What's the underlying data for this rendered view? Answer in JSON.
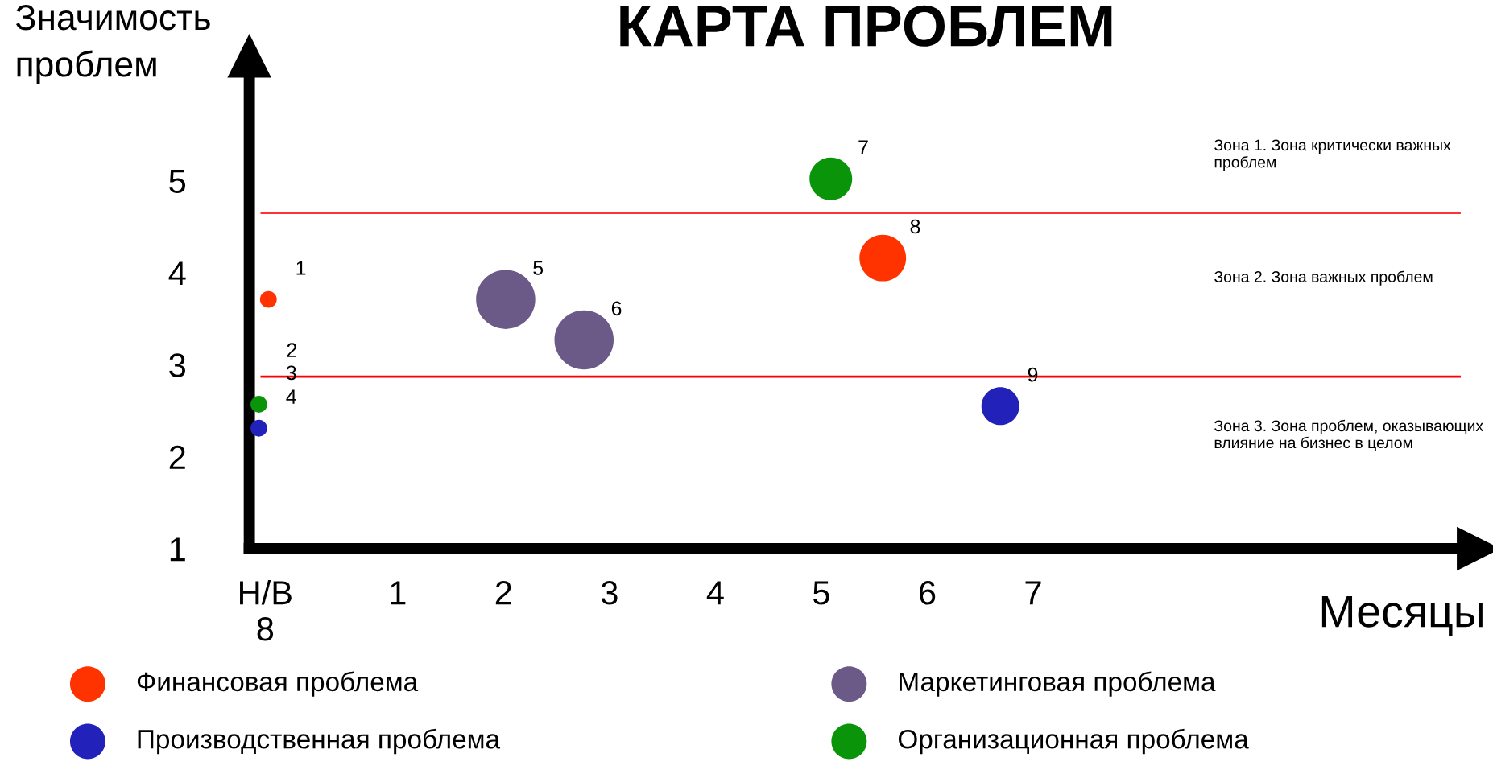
{
  "chart_data": {
    "type": "bubble",
    "title": "КАРТА ПРОБЛЕМ",
    "xlabel": "Месяцы",
    "ylabel": "Значимость\nпроблем",
    "xlim": [
      -0.4,
      11.2
    ],
    "ylim": [
      1,
      6.35
    ],
    "xticks": [
      {
        "value": -0.25,
        "label": "Н/В\n8"
      },
      1,
      2,
      3,
      4,
      5,
      6,
      7
    ],
    "yticks": [
      1,
      2,
      3,
      4,
      5
    ],
    "grid": false,
    "legend": "bottom",
    "series": [
      {
        "name": "Финансовая проблема",
        "color": "#ff3300",
        "x": [
          -0.22,
          5.58
        ],
        "values": [
          3.71,
          4.16
        ],
        "sizes": [
          0.08,
          0.62
        ]
      },
      {
        "name": "Маркетинговая проблема",
        "color": "#6b5a87",
        "x": [
          2.02,
          2.76
        ],
        "values": [
          3.71,
          3.27
        ],
        "sizes": [
          1,
          1
        ]
      },
      {
        "name": "Производственная проблема",
        "color": "#2222bb",
        "x": [
          -0.31,
          6.69
        ],
        "values": [
          2.31,
          2.55
        ],
        "sizes": [
          0.08,
          0.41
        ]
      },
      {
        "name": "Организационная проблема",
        "color": "#0a940a",
        "x": [
          -0.31,
          5.09
        ],
        "values": [
          2.57,
          5.02
        ],
        "sizes": [
          0.08,
          0.52
        ]
      }
    ],
    "ref_lines": [
      {
        "axis": "y",
        "value": 4.65,
        "color": "#ff3333"
      },
      {
        "axis": "y",
        "value": 2.87,
        "color": "#ff0000"
      }
    ],
    "annotations": [
      {
        "text": "1",
        "x": -0.22,
        "y": 3.71
      },
      {
        "text": "3",
        "x": -0.31,
        "y": 2.57
      },
      {
        "text": "4",
        "x": -0.31,
        "y": 2.31
      },
      {
        "text": "5",
        "x": 2.02,
        "y": 3.71
      },
      {
        "text": "6",
        "x": 2.76,
        "y": 3.27
      },
      {
        "text": "7",
        "x": 5.09,
        "y": 5.02
      },
      {
        "text": "8",
        "x": 5.58,
        "y": 4.16
      },
      {
        "text": "9",
        "x": 6.69,
        "y": 2.55
      },
      "2",
      "Зона 1. Зона критически важных\nпроблем",
      "Зона 2. Зона важных проблем",
      "Зона 3. Зона проблем, оказывающих\nвлияние на бизнес в целом"
    ]
  }
}
